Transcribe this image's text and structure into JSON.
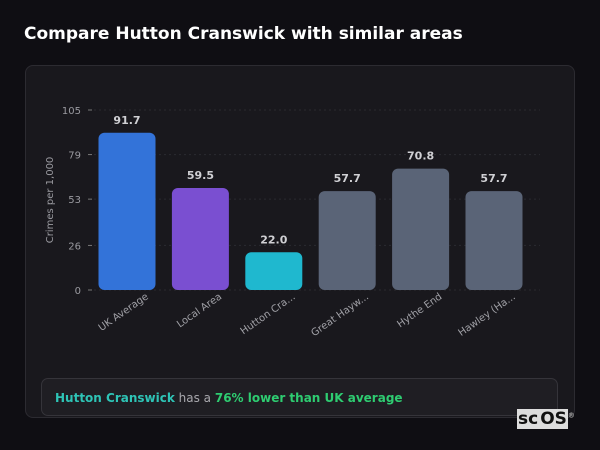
{
  "title": "Compare Hutton Cranswick with similar areas",
  "chart_data": {
    "type": "bar",
    "categories": [
      "UK Average",
      "Local Area",
      "Hutton Cra...",
      "Great Hayw...",
      "Hythe End",
      "Hawley (Ha..."
    ],
    "values": [
      91.7,
      59.5,
      22.0,
      57.7,
      70.8,
      57.7
    ],
    "colors": [
      "#3373d9",
      "#7a4fd1",
      "#1fb8cf",
      "#5a6477",
      "#5a6477",
      "#5a6477"
    ],
    "ylabel": "Crimes per 1,000",
    "yticks": [
      0,
      26,
      53,
      79,
      105
    ],
    "ylim": [
      0,
      105
    ],
    "grid": true
  },
  "summary": {
    "place": "Hutton Cranswick",
    "middle": " has a ",
    "stat": "76% lower than UK average"
  },
  "logo": {
    "text": "sc",
    "boxed": "OS",
    "mark": "®"
  }
}
